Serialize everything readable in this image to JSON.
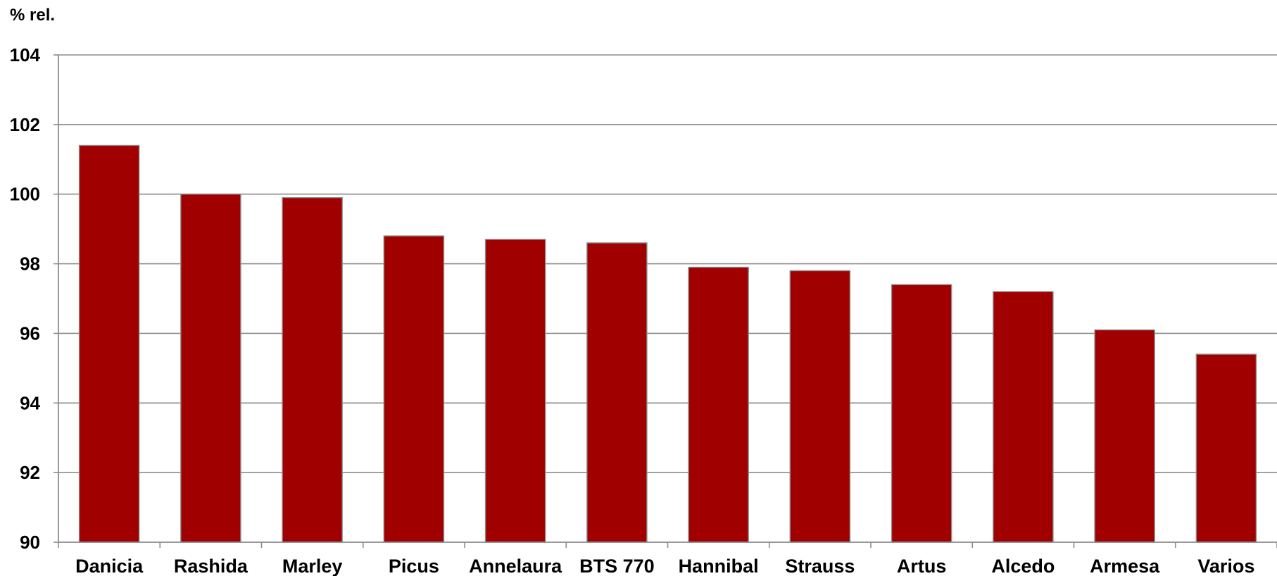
{
  "chart_data": {
    "type": "bar",
    "title": "",
    "xlabel": "",
    "ylabel": "% rel.",
    "ylim": [
      90,
      104
    ],
    "yticks": [
      90,
      92,
      94,
      96,
      98,
      100,
      102,
      104
    ],
    "grid": true,
    "categories": [
      "Danicia",
      "Rashida",
      "Marley",
      "Picus",
      "Annelaura",
      "BTS 770",
      "Hannibal",
      "Strauss",
      "Artus",
      "Alcedo",
      "Armesa",
      "Varios"
    ],
    "values": [
      101.4,
      100.0,
      99.9,
      98.8,
      98.7,
      98.6,
      97.9,
      97.8,
      97.4,
      97.2,
      96.1,
      95.4
    ],
    "colors": {
      "bar": "#A00000",
      "bar_outline": "#8c8c8c",
      "grid": "#8c8c8c",
      "axis": "#8c8c8c"
    }
  }
}
